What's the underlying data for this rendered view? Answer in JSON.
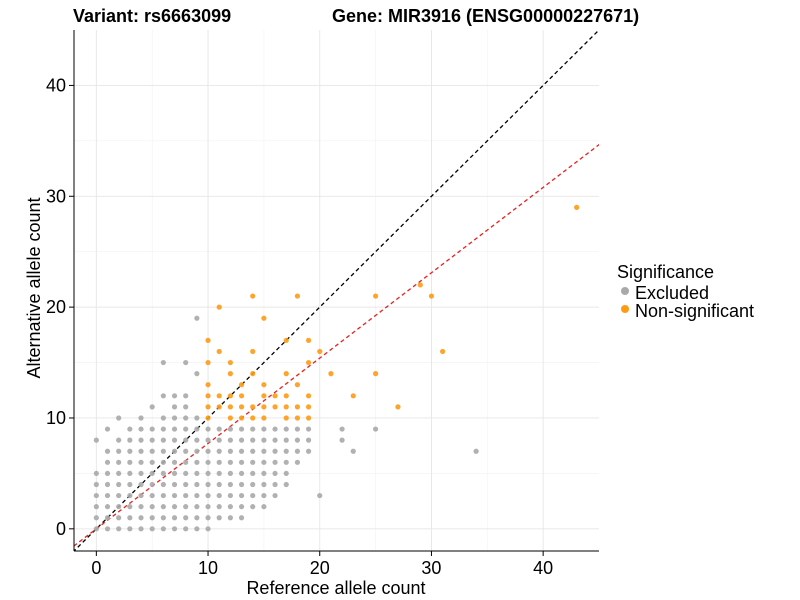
{
  "chart_data": {
    "type": "scatter",
    "title_left": "Variant: rs6663099",
    "title_right": "Gene: MIR3916 (ENSG00000227671)",
    "xlabel": "Reference allele count",
    "ylabel": "Alternative allele count",
    "xlim": [
      -2,
      45
    ],
    "ylim": [
      -2,
      45
    ],
    "xticks": [
      0,
      10,
      20,
      30,
      40
    ],
    "yticks": [
      0,
      10,
      20,
      30,
      40
    ],
    "grid": true,
    "legend": {
      "title": "Significance",
      "position": "right",
      "entries": [
        {
          "name": "Excluded",
          "color": "#a9a9a9"
        },
        {
          "name": "Non-significant",
          "color": "#ff9a14"
        }
      ]
    },
    "reference_lines": [
      {
        "slope": 1.0,
        "intercept": 0,
        "color": "#000000",
        "style": "dashed"
      },
      {
        "slope": 0.77,
        "intercept": 0,
        "color": "#e8231f",
        "style": "dashed"
      }
    ],
    "series": [
      {
        "name": "Excluded",
        "color": "#a9a9a9",
        "points": [
          [
            0,
            0
          ],
          [
            0,
            1
          ],
          [
            0,
            2
          ],
          [
            0,
            3
          ],
          [
            0,
            4
          ],
          [
            0,
            5
          ],
          [
            0,
            8
          ],
          [
            1,
            0
          ],
          [
            1,
            1
          ],
          [
            1,
            2
          ],
          [
            1,
            3
          ],
          [
            1,
            4
          ],
          [
            1,
            5
          ],
          [
            1,
            6
          ],
          [
            1,
            7
          ],
          [
            1,
            9
          ],
          [
            2,
            0
          ],
          [
            2,
            1
          ],
          [
            2,
            2
          ],
          [
            2,
            3
          ],
          [
            2,
            4
          ],
          [
            2,
            5
          ],
          [
            2,
            6
          ],
          [
            2,
            7
          ],
          [
            2,
            8
          ],
          [
            2,
            10
          ],
          [
            3,
            0
          ],
          [
            3,
            1
          ],
          [
            3,
            2
          ],
          [
            3,
            3
          ],
          [
            3,
            4
          ],
          [
            3,
            5
          ],
          [
            3,
            6
          ],
          [
            3,
            7
          ],
          [
            3,
            8
          ],
          [
            3,
            9
          ],
          [
            4,
            0
          ],
          [
            4,
            1
          ],
          [
            4,
            2
          ],
          [
            4,
            3
          ],
          [
            4,
            4
          ],
          [
            4,
            5
          ],
          [
            4,
            6
          ],
          [
            4,
            7
          ],
          [
            4,
            8
          ],
          [
            4,
            9
          ],
          [
            4,
            10
          ],
          [
            5,
            0
          ],
          [
            5,
            1
          ],
          [
            5,
            2
          ],
          [
            5,
            3
          ],
          [
            5,
            4
          ],
          [
            5,
            5
          ],
          [
            5,
            6
          ],
          [
            5,
            7
          ],
          [
            5,
            8
          ],
          [
            5,
            9
          ],
          [
            5,
            11
          ],
          [
            6,
            0
          ],
          [
            6,
            1
          ],
          [
            6,
            2
          ],
          [
            6,
            3
          ],
          [
            6,
            4
          ],
          [
            6,
            5
          ],
          [
            6,
            6
          ],
          [
            6,
            7
          ],
          [
            6,
            8
          ],
          [
            6,
            9
          ],
          [
            6,
            10
          ],
          [
            6,
            12
          ],
          [
            6,
            15
          ],
          [
            7,
            0
          ],
          [
            7,
            1
          ],
          [
            7,
            2
          ],
          [
            7,
            3
          ],
          [
            7,
            4
          ],
          [
            7,
            5
          ],
          [
            7,
            6
          ],
          [
            7,
            7
          ],
          [
            7,
            8
          ],
          [
            7,
            9
          ],
          [
            7,
            10
          ],
          [
            7,
            11
          ],
          [
            7,
            12
          ],
          [
            8,
            0
          ],
          [
            8,
            1
          ],
          [
            8,
            2
          ],
          [
            8,
            3
          ],
          [
            8,
            4
          ],
          [
            8,
            5
          ],
          [
            8,
            6
          ],
          [
            8,
            7
          ],
          [
            8,
            8
          ],
          [
            8,
            9
          ],
          [
            8,
            10
          ],
          [
            8,
            11
          ],
          [
            8,
            12
          ],
          [
            8,
            15
          ],
          [
            9,
            0
          ],
          [
            9,
            1
          ],
          [
            9,
            2
          ],
          [
            9,
            3
          ],
          [
            9,
            4
          ],
          [
            9,
            5
          ],
          [
            9,
            6
          ],
          [
            9,
            7
          ],
          [
            9,
            8
          ],
          [
            9,
            9
          ],
          [
            9,
            10
          ],
          [
            9,
            14
          ],
          [
            9,
            19
          ],
          [
            10,
            0
          ],
          [
            10,
            1
          ],
          [
            10,
            2
          ],
          [
            10,
            3
          ],
          [
            10,
            4
          ],
          [
            10,
            5
          ],
          [
            10,
            6
          ],
          [
            10,
            7
          ],
          [
            10,
            8
          ],
          [
            10,
            9
          ],
          [
            11,
            1
          ],
          [
            11,
            2
          ],
          [
            11,
            3
          ],
          [
            11,
            4
          ],
          [
            11,
            5
          ],
          [
            11,
            6
          ],
          [
            11,
            7
          ],
          [
            11,
            8
          ],
          [
            11,
            9
          ],
          [
            12,
            1
          ],
          [
            12,
            2
          ],
          [
            12,
            3
          ],
          [
            12,
            4
          ],
          [
            12,
            5
          ],
          [
            12,
            6
          ],
          [
            12,
            7
          ],
          [
            12,
            8
          ],
          [
            12,
            9
          ],
          [
            13,
            1
          ],
          [
            13,
            2
          ],
          [
            13,
            3
          ],
          [
            13,
            4
          ],
          [
            13,
            5
          ],
          [
            13,
            6
          ],
          [
            13,
            7
          ],
          [
            13,
            8
          ],
          [
            13,
            9
          ],
          [
            14,
            2
          ],
          [
            14,
            3
          ],
          [
            14,
            4
          ],
          [
            14,
            5
          ],
          [
            14,
            6
          ],
          [
            14,
            7
          ],
          [
            14,
            8
          ],
          [
            14,
            9
          ],
          [
            15,
            2
          ],
          [
            15,
            3
          ],
          [
            15,
            4
          ],
          [
            15,
            5
          ],
          [
            15,
            6
          ],
          [
            15,
            7
          ],
          [
            15,
            8
          ],
          [
            15,
            9
          ],
          [
            16,
            3
          ],
          [
            16,
            4
          ],
          [
            16,
            5
          ],
          [
            16,
            6
          ],
          [
            16,
            7
          ],
          [
            16,
            8
          ],
          [
            16,
            9
          ],
          [
            17,
            4
          ],
          [
            17,
            5
          ],
          [
            17,
            6
          ],
          [
            17,
            7
          ],
          [
            17,
            8
          ],
          [
            17,
            9
          ],
          [
            18,
            6
          ],
          [
            18,
            7
          ],
          [
            18,
            8
          ],
          [
            18,
            9
          ],
          [
            19,
            7
          ],
          [
            19,
            8
          ],
          [
            19,
            9
          ],
          [
            20,
            3
          ],
          [
            22,
            8
          ],
          [
            22,
            9
          ],
          [
            23,
            7
          ],
          [
            25,
            9
          ],
          [
            34,
            7
          ]
        ]
      },
      {
        "name": "Non-significant",
        "color": "#ff9a14",
        "points": [
          [
            10,
            10
          ],
          [
            10,
            11
          ],
          [
            10,
            12
          ],
          [
            10,
            13
          ],
          [
            10,
            15
          ],
          [
            10,
            17
          ],
          [
            11,
            11
          ],
          [
            11,
            12
          ],
          [
            11,
            16
          ],
          [
            11,
            20
          ],
          [
            12,
            10
          ],
          [
            12,
            11
          ],
          [
            12,
            12
          ],
          [
            12,
            14
          ],
          [
            12,
            15
          ],
          [
            13,
            10
          ],
          [
            13,
            11
          ],
          [
            13,
            12
          ],
          [
            13,
            13
          ],
          [
            14,
            10
          ],
          [
            14,
            11
          ],
          [
            14,
            14
          ],
          [
            14,
            16
          ],
          [
            14,
            21
          ],
          [
            15,
            10
          ],
          [
            15,
            11
          ],
          [
            15,
            12
          ],
          [
            15,
            13
          ],
          [
            15,
            19
          ],
          [
            16,
            11
          ],
          [
            16,
            12
          ],
          [
            17,
            10
          ],
          [
            17,
            11
          ],
          [
            17,
            12
          ],
          [
            17,
            14
          ],
          [
            17,
            17
          ],
          [
            18,
            10
          ],
          [
            18,
            11
          ],
          [
            18,
            13
          ],
          [
            18,
            21
          ],
          [
            19,
            10
          ],
          [
            19,
            11
          ],
          [
            19,
            12
          ],
          [
            19,
            15
          ],
          [
            19,
            17
          ],
          [
            20,
            16
          ],
          [
            21,
            14
          ],
          [
            23,
            12
          ],
          [
            25,
            14
          ],
          [
            25,
            21
          ],
          [
            27,
            11
          ],
          [
            29,
            22
          ],
          [
            30,
            21
          ],
          [
            31,
            16
          ],
          [
            43,
            29
          ]
        ]
      }
    ]
  }
}
